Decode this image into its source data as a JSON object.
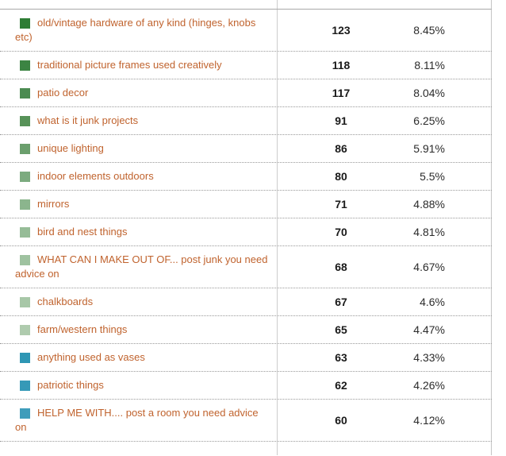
{
  "poll_table": {
    "columns": {
      "answer": "",
      "votes": "",
      "percent": ""
    },
    "rows": [
      {
        "label": "old/vintage hardware of any kind (hinges, knobs etc)",
        "votes": "123",
        "percent": "8.45%",
        "swatch_color": "#2e7d35"
      },
      {
        "label": "traditional picture frames used creatively",
        "votes": "118",
        "percent": "8.11%",
        "swatch_color": "#3c8443"
      },
      {
        "label": "patio decor",
        "votes": "117",
        "percent": "8.04%",
        "swatch_color": "#4b8b51"
      },
      {
        "label": "what is it junk projects",
        "votes": "91",
        "percent": "6.25%",
        "swatch_color": "#579258"
      },
      {
        "label": "unique lighting",
        "votes": "86",
        "percent": "5.91%",
        "swatch_color": "#6b9f6d"
      },
      {
        "label": "indoor elements outdoors",
        "votes": "80",
        "percent": "5.5%",
        "swatch_color": "#7cab7f"
      },
      {
        "label": "mirrors",
        "votes": "71",
        "percent": "4.88%",
        "swatch_color": "#8bb58d"
      },
      {
        "label": "bird and nest things",
        "votes": "70",
        "percent": "4.81%",
        "swatch_color": "#96bc97"
      },
      {
        "label": "WHAT CAN I MAKE OUT OF... post junk you need advice on",
        "votes": "68",
        "percent": "4.67%",
        "swatch_color": "#9fc2a0"
      },
      {
        "label": "chalkboards",
        "votes": "67",
        "percent": "4.6%",
        "swatch_color": "#a7c7a7"
      },
      {
        "label": "farm/western things",
        "votes": "65",
        "percent": "4.47%",
        "swatch_color": "#afcbae"
      },
      {
        "label": "anything used as vases",
        "votes": "63",
        "percent": "4.33%",
        "swatch_color": "#2e96b4"
      },
      {
        "label": "patriotic things",
        "votes": "62",
        "percent": "4.26%",
        "swatch_color": "#3699b7"
      },
      {
        "label": "HELP ME WITH.... post a room you need advice on",
        "votes": "60",
        "percent": "4.12%",
        "swatch_color": "#3f9dbb"
      }
    ]
  },
  "colors": {
    "label_link": "#c0632e",
    "count_text": "#1a1a1a",
    "percent_text": "#2b2b2b",
    "column_divider": "#cccccc",
    "header_rule": "#a9a9a9",
    "row_separator_dotted": "#999999",
    "background": "#ffffff"
  }
}
